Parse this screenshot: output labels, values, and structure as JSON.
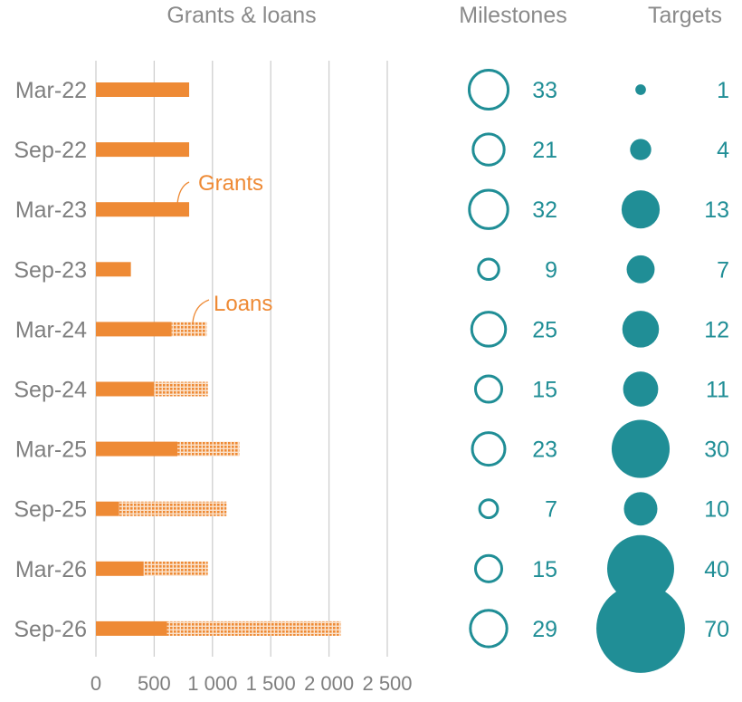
{
  "chart_data": [
    {
      "type": "bar",
      "stacked": true,
      "orientation": "horizontal",
      "title": "Grants & loans",
      "categories": [
        "Mar-22",
        "Sep-22",
        "Mar-23",
        "Sep-23",
        "Mar-24",
        "Sep-24",
        "Mar-25",
        "Sep-25",
        "Mar-26",
        "Sep-26"
      ],
      "series": [
        {
          "name": "Grants",
          "values": [
            800,
            800,
            800,
            300,
            650,
            500,
            700,
            200,
            410,
            610
          ]
        },
        {
          "name": "Loans",
          "values": [
            0,
            0,
            0,
            0,
            300,
            460,
            530,
            920,
            550,
            1490
          ]
        }
      ],
      "xlim": [
        0,
        2500
      ],
      "xticks": [
        0,
        500,
        1000,
        1500,
        2000,
        2500
      ],
      "xtick_labels": [
        "0",
        "500",
        "1 000",
        "1 500",
        "2 000",
        "2 500"
      ],
      "grid": "vertical",
      "annotations": [
        "Grants",
        "Loans"
      ],
      "colors": {
        "grants": "#ee8a35",
        "loans": "#ee8a35"
      }
    },
    {
      "type": "scatter",
      "subtype": "bubble",
      "title": "Milestones",
      "categories": [
        "Mar-22",
        "Sep-22",
        "Mar-23",
        "Sep-23",
        "Mar-24",
        "Sep-24",
        "Mar-25",
        "Sep-25",
        "Mar-26",
        "Sep-26"
      ],
      "values": [
        33,
        21,
        32,
        9,
        25,
        15,
        23,
        7,
        15,
        29
      ],
      "labels": [
        "33",
        "21",
        "32",
        "9",
        "25",
        "15",
        "23",
        "7",
        "15",
        "29"
      ],
      "style": "outline",
      "color": "#208e96"
    },
    {
      "type": "scatter",
      "subtype": "bubble",
      "title": "Targets",
      "categories": [
        "Mar-22",
        "Sep-22",
        "Mar-23",
        "Sep-23",
        "Mar-24",
        "Sep-24",
        "Mar-25",
        "Sep-25",
        "Mar-26",
        "Sep-26"
      ],
      "values": [
        1,
        4,
        13,
        7,
        12,
        11,
        30,
        10,
        40,
        70
      ],
      "labels": [
        "1",
        "4",
        "13",
        "7",
        "12",
        "11",
        "30",
        "10",
        "40",
        "70"
      ],
      "style": "filled",
      "color": "#208e96"
    }
  ]
}
